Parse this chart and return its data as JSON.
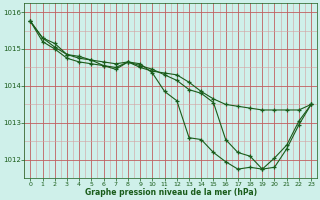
{
  "title": "Graphe pression niveau de la mer (hPa)",
  "background_color": "#cff0ea",
  "grid_color_major": "#c06060",
  "grid_color_minor": "#d4a0a0",
  "line_color": "#1a5c1a",
  "ylim": [
    1011.5,
    1016.25
  ],
  "yticks": [
    1012,
    1013,
    1014,
    1015,
    1016
  ],
  "xlim": [
    -0.5,
    23.5
  ],
  "xticks": [
    0,
    1,
    2,
    3,
    4,
    5,
    6,
    7,
    8,
    9,
    10,
    11,
    12,
    13,
    14,
    15,
    16,
    17,
    18,
    19,
    20,
    21,
    22,
    23
  ],
  "series1": [
    1015.75,
    1015.3,
    1015.15,
    1014.85,
    1014.75,
    1014.7,
    1014.65,
    1014.6,
    1014.65,
    1014.5,
    1014.4,
    1014.35,
    1014.3,
    1014.1,
    1013.85,
    1013.65,
    1013.5,
    1013.45,
    1013.4,
    1013.35,
    1013.35,
    1013.35,
    1013.35,
    1013.5
  ],
  "series2": [
    1015.75,
    1015.3,
    1015.05,
    1014.85,
    1014.8,
    1014.7,
    1014.55,
    1014.5,
    1014.65,
    1014.55,
    1014.45,
    1014.3,
    1014.15,
    1013.9,
    1013.8,
    1013.55,
    1012.55,
    1012.2,
    1012.1,
    1011.75,
    1011.8,
    1012.3,
    1012.95,
    1013.5
  ],
  "series3": [
    1015.75,
    1015.2,
    1015.0,
    1014.75,
    1014.65,
    1014.6,
    1014.55,
    1014.45,
    1014.65,
    1014.6,
    1014.35,
    1013.85,
    1013.6,
    1012.6,
    1012.55,
    1012.2,
    1011.95,
    1011.75,
    1011.8,
    1011.75,
    1012.05,
    1012.4,
    1013.05,
    1013.5
  ]
}
